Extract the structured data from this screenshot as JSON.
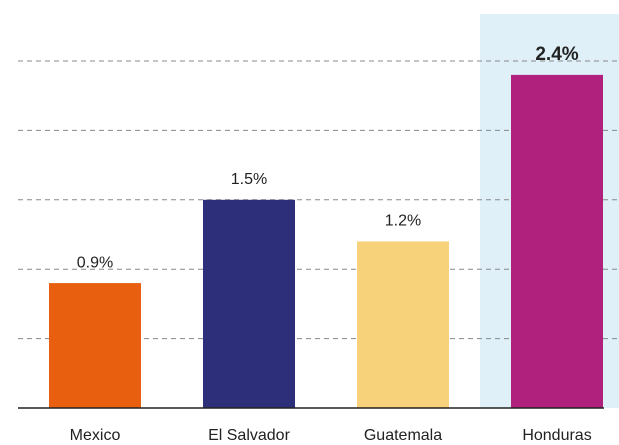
{
  "chart_data": {
    "type": "bar",
    "categories": [
      "Mexico",
      "El Salvador",
      "Guatemala",
      "Honduras"
    ],
    "values": [
      0.9,
      1.5,
      1.2,
      2.4
    ],
    "value_labels": [
      "0.9%",
      "1.5%",
      "1.2%",
      "2.4%"
    ],
    "colors": [
      "#e8600f",
      "#2e2f7a",
      "#f7d27a",
      "#b0217e"
    ],
    "highlight": "Honduras",
    "ylim": [
      0,
      2.5
    ],
    "yticks": [
      0.5,
      1,
      1.5,
      2,
      2.5
    ],
    "grid": true
  }
}
